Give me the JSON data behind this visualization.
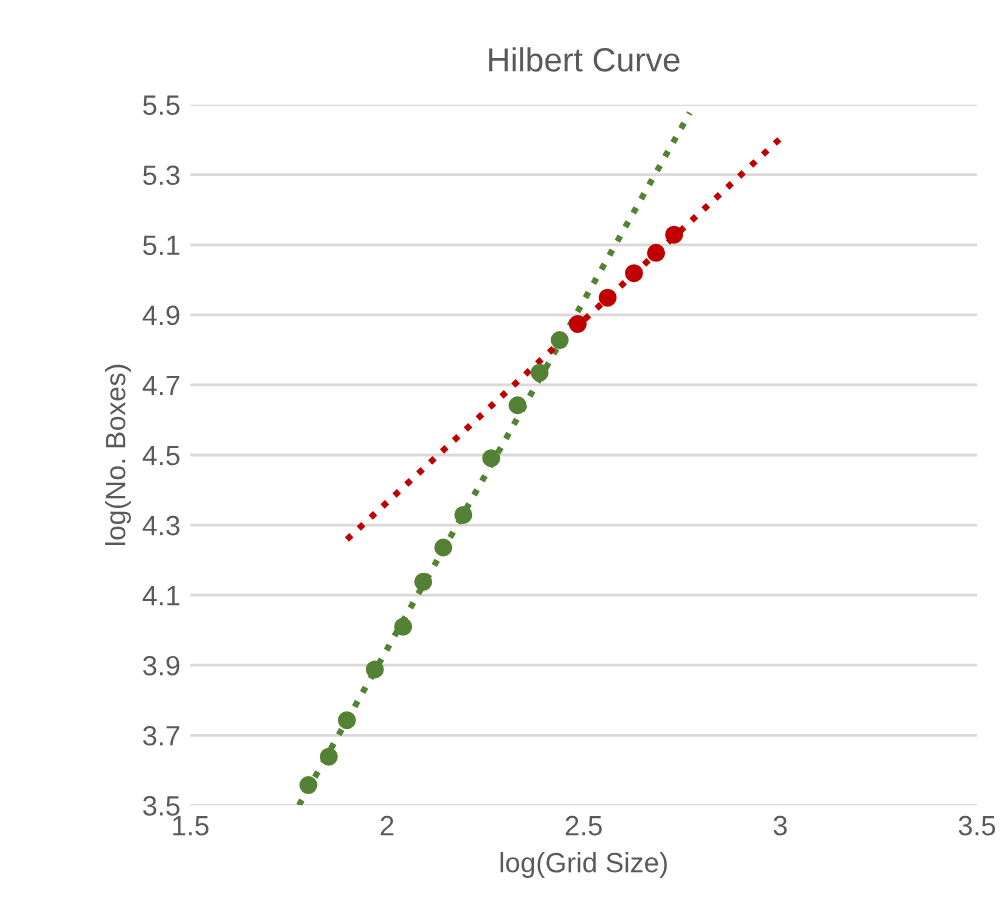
{
  "chart_data": {
    "type": "scatter",
    "title": "Hilbert Curve",
    "xlabel": "log(Grid Size)",
    "ylabel": "log(No. Boxes)",
    "xlim": [
      1.5,
      3.5
    ],
    "xticks": [
      1.5,
      2,
      2.5,
      3,
      3.5
    ],
    "ylim": [
      3.5,
      5.5
    ],
    "yticks": [
      3.5,
      3.7,
      3.9,
      4.1,
      4.3,
      4.5,
      4.7,
      4.9,
      5.1,
      5.3,
      5.5
    ],
    "grid": "y",
    "series": [
      {
        "marker": "circle",
        "color": "#548235",
        "x": [
          1.8,
          1.852,
          1.898,
          1.969,
          2.041,
          2.092,
          2.143,
          2.194,
          2.265,
          2.332,
          2.388,
          2.439
        ],
        "values": [
          3.558,
          3.639,
          3.743,
          3.888,
          4.01,
          4.138,
          4.236,
          4.329,
          4.491,
          4.642,
          4.735,
          4.828
        ]
      },
      {
        "marker": "circle",
        "color": "#c00000",
        "x": [
          2.485,
          2.561,
          2.628,
          2.684,
          2.73
        ],
        "values": [
          4.874,
          4.949,
          5.019,
          5.077,
          5.129
        ]
      },
      {
        "type": "line",
        "color": "#548235",
        "line_style": "dotted",
        "x": [
          1.776,
          2.77
        ],
        "values": [
          3.5,
          5.477
        ]
      },
      {
        "type": "line",
        "color": "#c00000",
        "line_style": "dotted",
        "x": [
          1.898,
          3.015
        ],
        "values": [
          4.259,
          5.419
        ]
      }
    ]
  }
}
